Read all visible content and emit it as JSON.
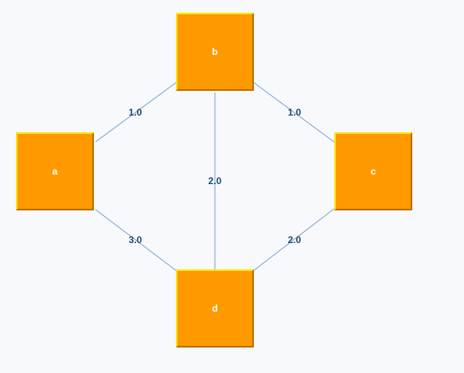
{
  "colors": {
    "background": "#f7f9fd",
    "node_fill": "#ff9900",
    "node_border_light": "#ffe600",
    "node_border_dark": "#b86e00",
    "edge": "#7b9fc8",
    "weight_text": "#1f4a6e"
  },
  "graph": {
    "nodes": [
      {
        "id": "a",
        "label": "a"
      },
      {
        "id": "b",
        "label": "b"
      },
      {
        "id": "c",
        "label": "c"
      },
      {
        "id": "d",
        "label": "d"
      }
    ],
    "edges": [
      {
        "from": "a",
        "to": "b",
        "weight": "1.0"
      },
      {
        "from": "b",
        "to": "c",
        "weight": "1.0"
      },
      {
        "from": "b",
        "to": "d",
        "weight": "2.0"
      },
      {
        "from": "a",
        "to": "d",
        "weight": "3.0"
      },
      {
        "from": "c",
        "to": "d",
        "weight": "2.0"
      }
    ]
  }
}
